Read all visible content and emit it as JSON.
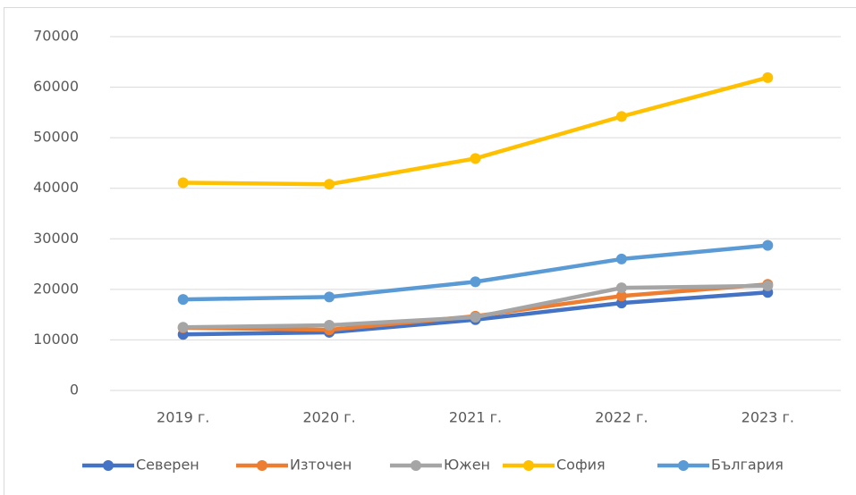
{
  "chart_data": {
    "type": "line",
    "categories": [
      "2019 г.",
      "2020 г.",
      "2021 г.",
      "2022 г.",
      "2023 г."
    ],
    "series": [
      {
        "name": "Северен",
        "color": "#4472c4",
        "values": [
          11100,
          11500,
          14000,
          17300,
          19400
        ]
      },
      {
        "name": "Източен",
        "color": "#ed7d31",
        "values": [
          12400,
          12000,
          14700,
          18700,
          21000
        ]
      },
      {
        "name": "Южен",
        "color": "#a5a5a5",
        "values": [
          12500,
          12900,
          14500,
          20300,
          20700
        ]
      },
      {
        "name": "София",
        "color": "#ffc000",
        "values": [
          41100,
          40800,
          45900,
          54200,
          61900
        ]
      },
      {
        "name": "България",
        "color": "#5b9bd5",
        "values": [
          18000,
          18500,
          21500,
          26000,
          28700
        ]
      }
    ],
    "ylim": [
      0,
      70000
    ],
    "yticks": [
      0,
      10000,
      20000,
      30000,
      40000,
      50000,
      60000,
      70000
    ],
    "grid": true,
    "legend": "bottom"
  }
}
